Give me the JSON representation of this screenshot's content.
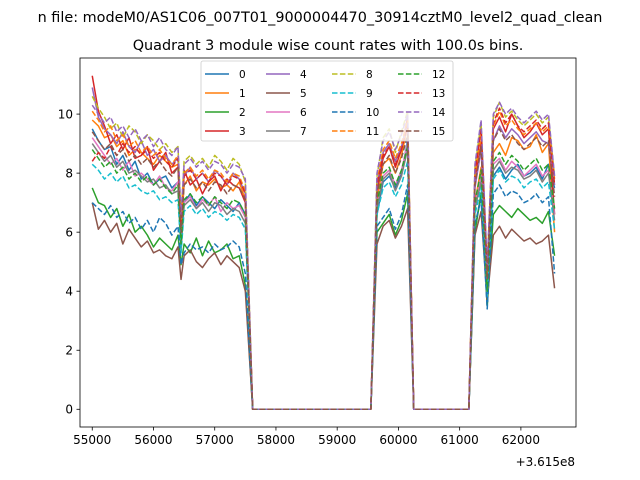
{
  "chart_data": {
    "type": "line",
    "suptitle": "n file: modeM0/AS1C06_007T01_9000004470_30914cztM0_level2_quad_clean",
    "title": "Quadrant 3 module wise count rates with 100.0s bins.",
    "xlabel": "",
    "ylabel": "",
    "x_offset_label": "+3.615e8",
    "x_ticks": [
      55000,
      56000,
      57000,
      58000,
      59000,
      60000,
      61000,
      62000
    ],
    "y_ticks": [
      0,
      2,
      4,
      6,
      8,
      10
    ],
    "xlim": [
      54800,
      62900
    ],
    "ylim": [
      -0.6,
      11.9
    ],
    "grid": false,
    "legend_position": "upper center",
    "x_segments": [
      [
        55000,
        55100,
        55200,
        55300,
        55400,
        55500,
        55600,
        55700,
        55800,
        55900,
        56000,
        56100,
        56200,
        56300,
        56400,
        56450,
        56500,
        56600,
        56700,
        56800,
        56900,
        57000,
        57100,
        57200,
        57300,
        57400,
        57500,
        57620
      ],
      [
        59550,
        59650,
        59750,
        59850,
        59950,
        60050,
        60150,
        60250
      ],
      [
        61150,
        61250,
        61350,
        61450,
        61550,
        61650,
        61750,
        61850,
        61950,
        62050,
        62150,
        62250,
        62350,
        62450,
        62550
      ]
    ],
    "zero_intervals": [
      [
        57620,
        59550
      ],
      [
        60250,
        61150
      ]
    ],
    "series": [
      {
        "name": "0",
        "color": "#1f77b4",
        "dash": false,
        "values": [
          [
            9.5,
            9.1,
            8.8,
            8.9,
            8.3,
            8.6,
            8.1,
            8.4,
            7.8,
            8.0,
            7.6,
            7.8,
            7.9,
            7.5,
            7.7,
            5.6,
            7.0,
            7.3,
            6.9,
            7.2,
            7.0,
            6.8,
            7.1,
            6.9,
            6.7,
            7.0,
            6.6,
            0
          ],
          [
            0,
            6.6,
            7.7,
            7.9,
            7.5,
            8.0,
            9.1,
            0
          ],
          [
            0,
            6.1,
            7.3,
            3.5,
            7.9,
            8.2,
            7.8,
            8.1,
            8.3,
            7.9,
            8.0,
            8.2,
            7.8,
            8.3,
            7.5
          ]
        ]
      },
      {
        "name": "1",
        "color": "#ff7f0e",
        "dash": false,
        "values": [
          [
            9.8,
            9.6,
            9.2,
            9.3,
            8.9,
            9.1,
            8.6,
            8.8,
            8.7,
            8.5,
            8.3,
            8.6,
            8.4,
            8.2,
            8.3,
            6.0,
            7.6,
            7.9,
            7.4,
            7.7,
            7.6,
            7.8,
            7.5,
            7.6,
            7.4,
            7.7,
            7.1,
            0
          ],
          [
            0,
            7.1,
            8.3,
            8.5,
            8.0,
            8.6,
            9.6,
            0
          ],
          [
            0,
            7.0,
            8.2,
            4.2,
            8.7,
            9.0,
            8.6,
            9.2,
            9.1,
            8.8,
            8.9,
            9.3,
            8.7,
            9.0,
            6.0
          ]
        ]
      },
      {
        "name": "2",
        "color": "#2ca02c",
        "dash": false,
        "values": [
          [
            7.5,
            7.0,
            6.9,
            6.5,
            6.8,
            6.2,
            6.6,
            6.0,
            6.2,
            5.9,
            5.5,
            5.8,
            5.6,
            5.4,
            5.9,
            4.9,
            5.6,
            5.3,
            5.8,
            5.2,
            5.7,
            5.3,
            5.4,
            5.6,
            5.1,
            5.2,
            4.2,
            0
          ],
          [
            0,
            6.0,
            6.3,
            6.6,
            5.9,
            6.4,
            7.3,
            0
          ],
          [
            0,
            6.0,
            7.3,
            3.5,
            6.6,
            6.9,
            6.7,
            6.5,
            6.8,
            6.6,
            6.4,
            6.5,
            6.3,
            6.7,
            5.2
          ]
        ]
      },
      {
        "name": "3",
        "color": "#d62728",
        "dash": false,
        "values": [
          [
            11.3,
            10.1,
            9.6,
            9.0,
            9.3,
            8.8,
            9.2,
            8.5,
            8.6,
            8.9,
            8.1,
            8.4,
            8.7,
            8.0,
            8.2,
            6.4,
            8.1,
            7.6,
            7.8,
            7.3,
            7.7,
            7.9,
            7.4,
            7.8,
            7.6,
            7.5,
            7.0,
            0
          ],
          [
            0,
            7.4,
            8.5,
            8.9,
            8.2,
            8.8,
            9.9,
            0
          ],
          [
            0,
            7.8,
            9.0,
            4.5,
            9.5,
            9.9,
            9.4,
            10.0,
            9.6,
            9.2,
            9.4,
            9.7,
            9.3,
            9.5,
            6.6
          ]
        ]
      },
      {
        "name": "4",
        "color": "#9467bd",
        "dash": false,
        "values": [
          [
            10.9,
            9.9,
            9.5,
            9.3,
            9.0,
            9.4,
            8.9,
            8.7,
            9.1,
            8.6,
            8.8,
            8.4,
            8.6,
            8.3,
            8.5,
            6.2,
            7.9,
            8.2,
            7.8,
            8.0,
            7.7,
            8.1,
            7.9,
            7.6,
            8.0,
            7.8,
            7.3,
            0
          ],
          [
            0,
            7.6,
            8.7,
            9.0,
            8.4,
            8.9,
            9.7,
            0
          ],
          [
            0,
            7.5,
            8.8,
            4.3,
            9.1,
            9.6,
            9.2,
            9.5,
            9.3,
            9.0,
            9.2,
            9.4,
            9.1,
            9.0,
            7.6
          ]
        ]
      },
      {
        "name": "5",
        "color": "#8c564b",
        "dash": false,
        "values": [
          [
            7.0,
            6.1,
            6.4,
            6.0,
            6.3,
            5.6,
            6.1,
            5.8,
            5.5,
            5.7,
            5.3,
            5.4,
            5.2,
            5.1,
            5.5,
            4.4,
            5.2,
            5.4,
            5.0,
            4.8,
            5.1,
            5.3,
            4.9,
            5.2,
            5.0,
            4.8,
            4.0,
            0
          ],
          [
            0,
            5.6,
            6.2,
            6.4,
            5.8,
            6.2,
            6.8,
            0
          ],
          [
            0,
            5.9,
            6.7,
            3.7,
            5.9,
            6.2,
            5.8,
            6.1,
            5.9,
            5.7,
            5.8,
            5.6,
            5.7,
            5.9,
            4.1
          ]
        ]
      },
      {
        "name": "6",
        "color": "#e377c2",
        "dash": false,
        "values": [
          [
            9.2,
            8.9,
            8.6,
            8.3,
            8.5,
            8.1,
            8.4,
            7.9,
            8.0,
            7.8,
            7.6,
            7.9,
            7.5,
            7.4,
            7.7,
            5.5,
            7.0,
            7.2,
            6.8,
            7.1,
            6.9,
            7.2,
            6.7,
            7.0,
            6.8,
            6.9,
            6.5,
            0
          ],
          [
            0,
            6.9,
            7.9,
            8.1,
            7.6,
            8.1,
            9.0,
            0
          ],
          [
            0,
            6.9,
            7.9,
            4.0,
            8.3,
            8.5,
            8.1,
            8.4,
            8.2,
            7.9,
            8.1,
            8.3,
            7.9,
            8.1,
            6.6
          ]
        ]
      },
      {
        "name": "7",
        "color": "#7f7f7f",
        "dash": false,
        "values": [
          [
            9.0,
            8.7,
            8.4,
            8.6,
            8.2,
            8.4,
            8.0,
            8.1,
            7.9,
            7.7,
            7.8,
            7.5,
            7.6,
            7.3,
            7.4,
            5.4,
            6.9,
            7.1,
            6.8,
            7.0,
            6.7,
            7.0,
            6.9,
            6.6,
            6.8,
            6.7,
            6.3,
            0
          ],
          [
            0,
            6.8,
            7.8,
            8.0,
            7.4,
            7.9,
            8.8,
            0
          ],
          [
            0,
            6.8,
            7.7,
            3.9,
            8.1,
            8.4,
            8.0,
            8.2,
            8.1,
            7.8,
            7.9,
            8.1,
            7.7,
            8.0,
            6.4
          ]
        ]
      },
      {
        "name": "8",
        "color": "#bcbd22",
        "dash": true,
        "values": [
          [
            10.6,
            10.2,
            9.9,
            9.5,
            9.7,
            9.2,
            9.6,
            9.4,
            9.0,
            9.3,
            9.1,
            8.8,
            9.0,
            8.7,
            8.9,
            6.5,
            8.4,
            8.6,
            8.3,
            8.5,
            8.2,
            8.6,
            8.4,
            8.1,
            8.5,
            8.3,
            7.7,
            0
          ],
          [
            0,
            7.9,
            9.2,
            9.5,
            8.7,
            9.4,
            10.1,
            0
          ],
          [
            0,
            8.2,
            9.7,
            4.8,
            9.9,
            10.4,
            9.9,
            10.1,
            9.8,
            9.6,
            9.8,
            10.0,
            9.7,
            9.9,
            7.9
          ]
        ]
      },
      {
        "name": "9",
        "color": "#17becf",
        "dash": true,
        "values": [
          [
            8.3,
            8.1,
            7.8,
            8.0,
            7.7,
            7.9,
            7.5,
            7.6,
            7.4,
            7.3,
            7.4,
            7.1,
            7.2,
            7.0,
            7.1,
            5.3,
            6.7,
            6.9,
            6.6,
            6.8,
            6.5,
            6.7,
            6.6,
            6.4,
            6.6,
            6.5,
            6.1,
            0
          ],
          [
            0,
            6.6,
            7.5,
            7.7,
            7.2,
            7.6,
            8.4,
            0
          ],
          [
            0,
            6.6,
            7.5,
            3.8,
            7.8,
            8.1,
            7.7,
            7.9,
            7.8,
            7.5,
            7.7,
            7.8,
            7.5,
            7.7,
            6.1
          ]
        ]
      },
      {
        "name": "10",
        "color": "#1f77b4",
        "dash": true,
        "values": [
          [
            7.0,
            6.8,
            6.6,
            6.9,
            6.5,
            6.7,
            6.3,
            6.5,
            6.1,
            6.4,
            6.0,
            6.5,
            6.3,
            5.9,
            6.2,
            4.9,
            5.3,
            5.6,
            5.4,
            5.5,
            5.3,
            5.6,
            5.4,
            5.5,
            5.7,
            5.5,
            4.6,
            0
          ],
          [
            0,
            6.2,
            6.5,
            6.8,
            6.1,
            6.6,
            7.6,
            0
          ],
          [
            0,
            6.3,
            7.1,
            3.4,
            7.3,
            7.6,
            7.2,
            7.4,
            7.3,
            7.0,
            7.1,
            7.3,
            7.0,
            7.2,
            4.6
          ]
        ]
      },
      {
        "name": "11",
        "color": "#ff7f0e",
        "dash": true,
        "values": [
          [
            10.1,
            9.8,
            9.4,
            9.6,
            9.1,
            9.3,
            8.9,
            9.1,
            8.7,
            8.9,
            8.6,
            8.8,
            8.5,
            8.3,
            8.6,
            6.3,
            8.0,
            8.2,
            7.9,
            8.1,
            7.8,
            8.1,
            8.0,
            7.7,
            8.0,
            7.9,
            7.4,
            0
          ],
          [
            0,
            7.7,
            8.8,
            9.1,
            8.5,
            9.0,
            9.8,
            0
          ],
          [
            0,
            7.9,
            9.3,
            4.6,
            9.6,
            10.1,
            9.6,
            9.8,
            9.5,
            9.3,
            9.5,
            9.7,
            9.4,
            9.6,
            7.8
          ]
        ]
      },
      {
        "name": "12",
        "color": "#2ca02c",
        "dash": true,
        "values": [
          [
            8.8,
            8.5,
            8.2,
            8.4,
            8.0,
            8.2,
            7.8,
            8.0,
            7.7,
            7.9,
            7.6,
            7.8,
            7.5,
            7.3,
            7.6,
            5.6,
            7.1,
            7.3,
            7.0,
            7.2,
            6.9,
            7.2,
            7.0,
            6.8,
            7.1,
            7.0,
            6.6,
            0
          ],
          [
            0,
            7.0,
            8.0,
            8.2,
            7.6,
            8.1,
            8.9,
            0
          ],
          [
            0,
            7.0,
            8.1,
            4.0,
            8.4,
            8.7,
            8.3,
            8.6,
            8.4,
            8.1,
            8.3,
            8.5,
            8.1,
            8.3,
            6.8
          ]
        ]
      },
      {
        "name": "13",
        "color": "#d62728",
        "dash": true,
        "values": [
          [
            8.4,
            8.7,
            8.5,
            8.9,
            8.6,
            9.0,
            8.7,
            8.9,
            8.6,
            8.8,
            8.5,
            8.7,
            8.4,
            8.2,
            8.5,
            6.2,
            7.9,
            8.1,
            7.8,
            8.0,
            7.7,
            8.0,
            7.9,
            7.6,
            7.9,
            7.8,
            7.3,
            0
          ],
          [
            0,
            7.6,
            8.6,
            8.9,
            8.3,
            8.8,
            9.6,
            0
          ],
          [
            0,
            8.0,
            9.5,
            4.7,
            9.7,
            10.2,
            9.7,
            10.0,
            9.6,
            9.4,
            9.6,
            9.8,
            9.5,
            9.7,
            7.6
          ]
        ]
      },
      {
        "name": "14",
        "color": "#9467bd",
        "dash": true,
        "values": [
          [
            10.3,
            10.0,
            9.7,
            9.9,
            9.4,
            9.6,
            9.2,
            9.5,
            9.1,
            9.3,
            8.9,
            9.2,
            8.8,
            8.6,
            8.9,
            6.6,
            8.3,
            8.5,
            8.2,
            8.4,
            8.1,
            8.4,
            8.3,
            8.0,
            8.3,
            8.2,
            7.8,
            0
          ],
          [
            0,
            8.0,
            9.1,
            9.4,
            8.8,
            9.3,
            10.0,
            0
          ],
          [
            0,
            8.3,
            9.8,
            4.9,
            10.0,
            10.4,
            10.0,
            10.2,
            9.9,
            9.7,
            9.9,
            10.1,
            9.8,
            10.0,
            7.9
          ]
        ]
      },
      {
        "name": "15",
        "color": "#8c564b",
        "dash": true,
        "values": [
          [
            9.4,
            9.1,
            8.8,
            9.0,
            8.6,
            8.8,
            8.4,
            8.6,
            8.3,
            8.5,
            8.2,
            8.4,
            8.1,
            7.9,
            8.2,
            6.0,
            7.6,
            7.8,
            7.5,
            7.7,
            7.4,
            7.7,
            7.6,
            7.3,
            7.6,
            7.5,
            7.1,
            0
          ],
          [
            0,
            7.3,
            8.3,
            8.6,
            8.0,
            8.5,
            9.3,
            0
          ],
          [
            0,
            7.6,
            8.9,
            4.4,
            9.1,
            9.5,
            9.1,
            9.3,
            9.0,
            8.8,
            9.0,
            9.2,
            8.9,
            9.1,
            7.2
          ]
        ]
      }
    ]
  }
}
